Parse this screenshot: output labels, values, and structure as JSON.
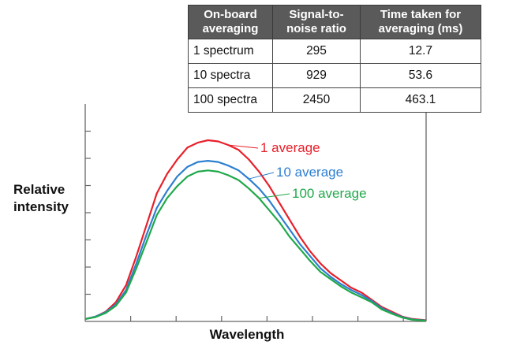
{
  "table": {
    "headers": [
      "On-board averaging",
      "Signal-to-noise ratio",
      "Time taken for averaging (ms)"
    ],
    "rows": [
      [
        "1 spectrum",
        "295",
        "12.7"
      ],
      [
        "10 spectra",
        "929",
        "53.6"
      ],
      [
        "100 spectra",
        "2450",
        "463.1"
      ]
    ]
  },
  "chart_data": {
    "type": "line",
    "xlabel": "Wavelength",
    "ylabel": "Relative intensity",
    "x_ticks_labeled": false,
    "y_ticks_labeled": false,
    "grid": false,
    "x": [
      0,
      0.03,
      0.06,
      0.09,
      0.12,
      0.15,
      0.18,
      0.21,
      0.24,
      0.27,
      0.3,
      0.33,
      0.36,
      0.39,
      0.42,
      0.45,
      0.48,
      0.51,
      0.54,
      0.57,
      0.6,
      0.63,
      0.66,
      0.69,
      0.72,
      0.75,
      0.78,
      0.81,
      0.84,
      0.87,
      0.9,
      0.93,
      0.96,
      1.0
    ],
    "series": [
      {
        "name": "1 average",
        "color": "#e8202a",
        "values": [
          0.01,
          0.02,
          0.04,
          0.08,
          0.15,
          0.27,
          0.4,
          0.53,
          0.61,
          0.67,
          0.72,
          0.74,
          0.75,
          0.745,
          0.73,
          0.71,
          0.67,
          0.62,
          0.56,
          0.49,
          0.42,
          0.35,
          0.29,
          0.24,
          0.2,
          0.17,
          0.14,
          0.12,
          0.09,
          0.06,
          0.04,
          0.02,
          0.01,
          0.005
        ]
      },
      {
        "name": "10 average",
        "color": "#2d7fd0",
        "values": [
          0.01,
          0.02,
          0.038,
          0.07,
          0.13,
          0.24,
          0.36,
          0.47,
          0.54,
          0.6,
          0.64,
          0.66,
          0.665,
          0.66,
          0.645,
          0.625,
          0.59,
          0.55,
          0.5,
          0.44,
          0.38,
          0.32,
          0.27,
          0.22,
          0.185,
          0.155,
          0.13,
          0.11,
          0.085,
          0.055,
          0.035,
          0.018,
          0.008,
          0.004
        ]
      },
      {
        "name": "100 average",
        "color": "#20a84a",
        "values": [
          0.01,
          0.018,
          0.035,
          0.065,
          0.12,
          0.22,
          0.33,
          0.44,
          0.51,
          0.56,
          0.6,
          0.62,
          0.625,
          0.62,
          0.605,
          0.585,
          0.55,
          0.51,
          0.46,
          0.41,
          0.35,
          0.3,
          0.25,
          0.205,
          0.175,
          0.145,
          0.12,
          0.1,
          0.08,
          0.05,
          0.032,
          0.016,
          0.007,
          0.003
        ]
      }
    ]
  }
}
